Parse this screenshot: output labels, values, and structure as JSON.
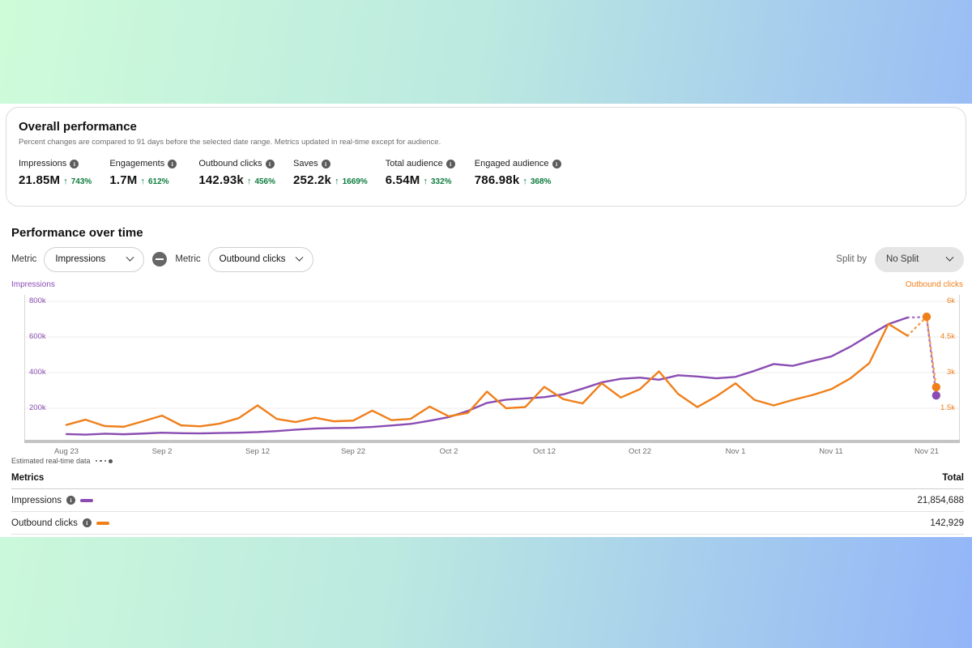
{
  "icons": {
    "up_arrow": "↑"
  },
  "colors": {
    "impressions_purple": "#8a4cb2",
    "outbound_orange": "#ef7f1a",
    "positive_green": "#0d7d3f",
    "bg_gradient_left": "#cefcd9",
    "bg_gradient_right": "#93b5f8"
  },
  "overview": {
    "title": "Overall performance",
    "subtitle": "Percent changes are compared to 91 days before the selected date range. Metrics updated in real-time except for audience.",
    "metrics": [
      {
        "label": "Impressions",
        "value": "21.85M",
        "change": "743%"
      },
      {
        "label": "Engagements",
        "value": "1.7M",
        "change": "612%"
      },
      {
        "label": "Outbound clicks",
        "value": "142.93k",
        "change": "456%"
      },
      {
        "label": "Saves",
        "value": "252.2k",
        "change": "1669%"
      },
      {
        "label": "Total audience",
        "value": "6.54M",
        "change": "332%"
      },
      {
        "label": "Engaged audience",
        "value": "786.98k",
        "change": "368%"
      }
    ]
  },
  "performance": {
    "title": "Performance over time",
    "metric_label_1": "Metric",
    "metric_select_1": "Impressions",
    "metric_label_2": "Metric",
    "metric_select_2": "Outbound clicks",
    "split_by_label": "Split by",
    "split_value": "No Split",
    "left_axis_title": "Impressions",
    "right_axis_title": "Outbound clicks",
    "estimated_legend": "Estimated real-time data"
  },
  "chart_data": {
    "type": "line",
    "title": "Performance over time",
    "x_unit": "days since Aug 23",
    "x_ticks": [
      {
        "day": 0,
        "label": "Aug 23"
      },
      {
        "day": 10,
        "label": "Sep 2"
      },
      {
        "day": 20,
        "label": "Sep 12"
      },
      {
        "day": 30,
        "label": "Sep 22"
      },
      {
        "day": 40,
        "label": "Oct 2"
      },
      {
        "day": 50,
        "label": "Oct 12"
      },
      {
        "day": 60,
        "label": "Oct 22"
      },
      {
        "day": 70,
        "label": "Nov 1"
      },
      {
        "day": 80,
        "label": "Nov 11"
      },
      {
        "day": 90,
        "label": "Nov 21"
      }
    ],
    "left_axis": {
      "title": "Impressions",
      "unit": "k",
      "ticks": [
        {
          "v": 800,
          "label": "800k"
        },
        {
          "v": 600,
          "label": "600k"
        },
        {
          "v": 400,
          "label": "400k"
        },
        {
          "v": 200,
          "label": "200k"
        }
      ],
      "range": [
        0,
        845
      ]
    },
    "right_axis": {
      "title": "Outbound clicks",
      "unit": "k",
      "ticks": [
        {
          "v": 6,
          "label": "6k"
        },
        {
          "v": 4.5,
          "label": "4.5k"
        },
        {
          "v": 3,
          "label": "3k"
        },
        {
          "v": 1.5,
          "label": "1.5k"
        }
      ],
      "range": [
        0,
        6.34
      ]
    },
    "series": [
      {
        "name": "Impressions",
        "axis": "left",
        "color": "#8a4cb2",
        "days": [
          0,
          2,
          4,
          6,
          8,
          10,
          12,
          14,
          16,
          18,
          20,
          22,
          24,
          26,
          28,
          30,
          32,
          34,
          36,
          38,
          40,
          42,
          44,
          46,
          48,
          50,
          52,
          54,
          56,
          58,
          60,
          62,
          64,
          66,
          68,
          70,
          72,
          74,
          76,
          78,
          80,
          82,
          84,
          86,
          88
        ],
        "values_k": [
          55,
          52,
          57,
          54,
          58,
          63,
          60,
          59,
          61,
          63,
          66,
          72,
          80,
          86,
          89,
          90,
          95,
          103,
          112,
          130,
          150,
          185,
          230,
          248,
          255,
          262,
          278,
          310,
          345,
          365,
          372,
          360,
          385,
          378,
          368,
          376,
          410,
          448,
          438,
          465,
          490,
          545,
          610,
          672,
          709
        ],
        "estimated": {
          "days": [
            88,
            90,
            91
          ],
          "values_k": [
            709,
            712,
            272
          ],
          "dot_days": [
            91
          ]
        }
      },
      {
        "name": "Outbound clicks",
        "axis": "right",
        "color": "#ef7f1a",
        "days": [
          0,
          2,
          4,
          6,
          8,
          10,
          12,
          14,
          16,
          18,
          20,
          22,
          24,
          26,
          28,
          30,
          32,
          34,
          36,
          38,
          40,
          42,
          44,
          46,
          48,
          50,
          52,
          54,
          56,
          58,
          60,
          62,
          64,
          66,
          68,
          70,
          72,
          74,
          76,
          78,
          80,
          82,
          84,
          86,
          88
        ],
        "values_k": [
          0.8,
          1.02,
          0.75,
          0.72,
          0.95,
          1.19,
          0.78,
          0.74,
          0.85,
          1.08,
          1.62,
          1.05,
          0.92,
          1.1,
          0.95,
          0.98,
          1.4,
          1.0,
          1.05,
          1.57,
          1.16,
          1.3,
          2.2,
          1.5,
          1.55,
          2.4,
          1.88,
          1.7,
          2.55,
          1.95,
          2.3,
          3.05,
          2.1,
          1.55,
          2.0,
          2.55,
          1.85,
          1.62,
          1.85,
          2.05,
          2.3,
          2.75,
          3.4,
          5.05,
          4.55
        ],
        "estimated": {
          "days": [
            88,
            90,
            91
          ],
          "values_k": [
            4.55,
            5.35,
            2.39
          ],
          "dot_days": [
            90,
            91
          ]
        }
      }
    ],
    "grid": "horizontal"
  },
  "table": {
    "header_metric": "Metrics",
    "header_total": "Total",
    "rows": [
      {
        "label": "Impressions",
        "total": "21,854,688",
        "color": "#8a4cb2"
      },
      {
        "label": "Outbound clicks",
        "total": "142,929",
        "color": "#ef7f1a"
      }
    ]
  }
}
